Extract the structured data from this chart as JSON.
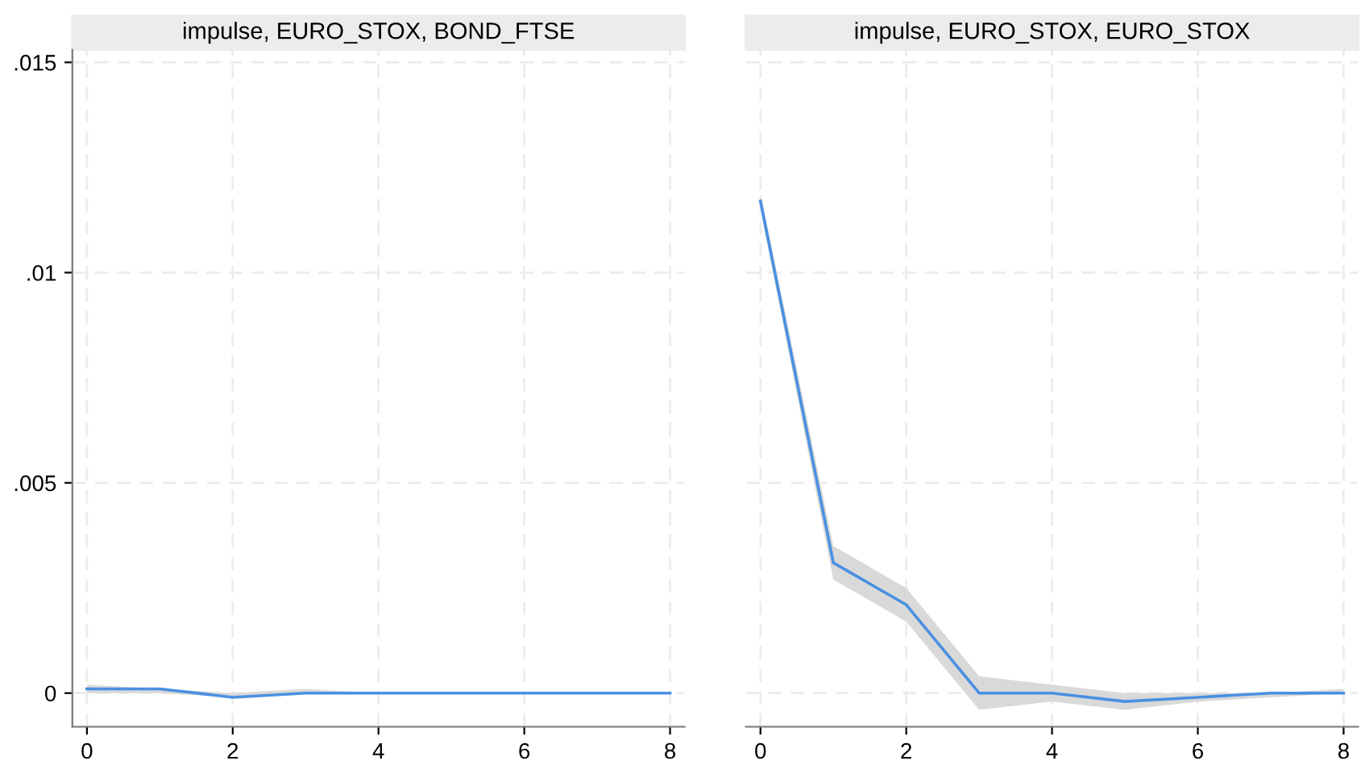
{
  "chart_data": [
    {
      "type": "line",
      "title": "impulse, EURO_STOX, BOND_FTSE",
      "x": [
        0,
        1,
        2,
        3,
        4,
        5,
        6,
        7,
        8
      ],
      "series": [
        {
          "color": "#4a90e2",
          "values": [
            0.0001,
            0.0001,
            -0.0001,
            0.0,
            0,
            0,
            0,
            0,
            0
          ],
          "lower": [
            0.0,
            0.0,
            -0.0001,
            0.0,
            0.0,
            0.0,
            0.0,
            0.0,
            0.0
          ],
          "upper": [
            0.0002,
            0.0001,
            0.0,
            0.0001,
            0.0,
            0.0,
            0.0,
            0.0,
            0.0
          ]
        }
      ],
      "xlim": [
        -0.2,
        8.2
      ],
      "ylim": [
        -0.0008,
        0.0153
      ],
      "xticks": [
        0,
        2,
        4,
        6,
        8
      ],
      "yticks": [
        {
          "value": 0,
          "label": "0"
        },
        {
          "value": 0.005,
          "label": ".005"
        },
        {
          "value": 0.01,
          "label": ".01"
        },
        {
          "value": 0.015,
          "label": ".015"
        }
      ],
      "grid": true
    },
    {
      "type": "line",
      "title": "impulse, EURO_STOX, EURO_STOX",
      "x": [
        0,
        1,
        2,
        3,
        4,
        5,
        6,
        7,
        8
      ],
      "series": [
        {
          "color": "#4a90e2",
          "values": [
            0.0117,
            0.0031,
            0.0021,
            0.0,
            0.0,
            -0.0002,
            -0.0001,
            0.0,
            0.0
          ],
          "lower": [
            0.0115,
            0.0027,
            0.0017,
            -0.0004,
            -0.0002,
            -0.0004,
            -0.0002,
            -0.0001,
            0.0
          ],
          "upper": [
            0.0119,
            0.0035,
            0.0025,
            0.0004,
            0.0002,
            0.0,
            0.0,
            0.0,
            0.0001
          ]
        }
      ],
      "xlim": [
        -0.2,
        8.2
      ],
      "ylim": [
        -0.0008,
        0.0153
      ],
      "xticks": [
        0,
        2,
        4,
        6,
        8
      ],
      "yticks": [
        {
          "value": 0,
          "label": null
        },
        {
          "value": 0.005,
          "label": null
        },
        {
          "value": 0.01,
          "label": null
        },
        {
          "value": 0.015,
          "label": null
        }
      ],
      "grid": true,
      "tick_labels": "x"
    }
  ]
}
